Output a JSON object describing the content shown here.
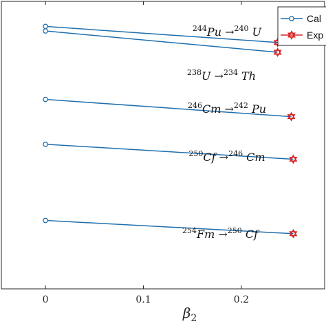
{
  "chart_data": {
    "type": "line",
    "xlabel": "β",
    "xlabel_sub": "2",
    "ylabel": "",
    "xlim": [
      -0.045,
      0.285
    ],
    "ylim": [
      0,
      1
    ],
    "x_ticks": [
      0,
      0.1,
      0.2
    ],
    "x_tick_labels": [
      "0",
      "0.1",
      "0.2"
    ],
    "grid": false,
    "legend": {
      "placement": "top-right",
      "entries": [
        {
          "label": "Cal",
          "marker": "circle",
          "color": "#1f6fad"
        },
        {
          "label": "Exp",
          "marker": "hexagram",
          "color": "#d62728"
        }
      ]
    },
    "colors": {
      "line": "#1f6fad",
      "exp": "#d62728"
    },
    "series": [
      {
        "annotation": {
          "a": "244",
          "x": "Pu",
          "b": "240",
          "y": "U"
        },
        "x": [
          0,
          0.237
        ],
        "values": [
          0.913,
          0.857
        ]
      },
      {
        "annotation": {
          "a": "238",
          "x": "U",
          "b": "234",
          "y": "Th"
        },
        "x": [
          0,
          0.237
        ],
        "values": [
          0.897,
          0.823
        ]
      },
      {
        "annotation": {
          "a": "246",
          "x": "Cm",
          "b": "242",
          "y": "Pu"
        },
        "x": [
          0,
          0.251
        ],
        "values": [
          0.659,
          0.599
        ]
      },
      {
        "annotation": {
          "a": "250",
          "x": "Cf",
          "b": "246",
          "y": "Cm"
        },
        "x": [
          0,
          0.253
        ],
        "values": [
          0.503,
          0.451
        ]
      },
      {
        "annotation": {
          "a": "254",
          "x": "Fm",
          "b": "250",
          "y": "Cf"
        },
        "x": [
          0,
          0.253
        ],
        "values": [
          0.238,
          0.192
        ]
      }
    ]
  }
}
